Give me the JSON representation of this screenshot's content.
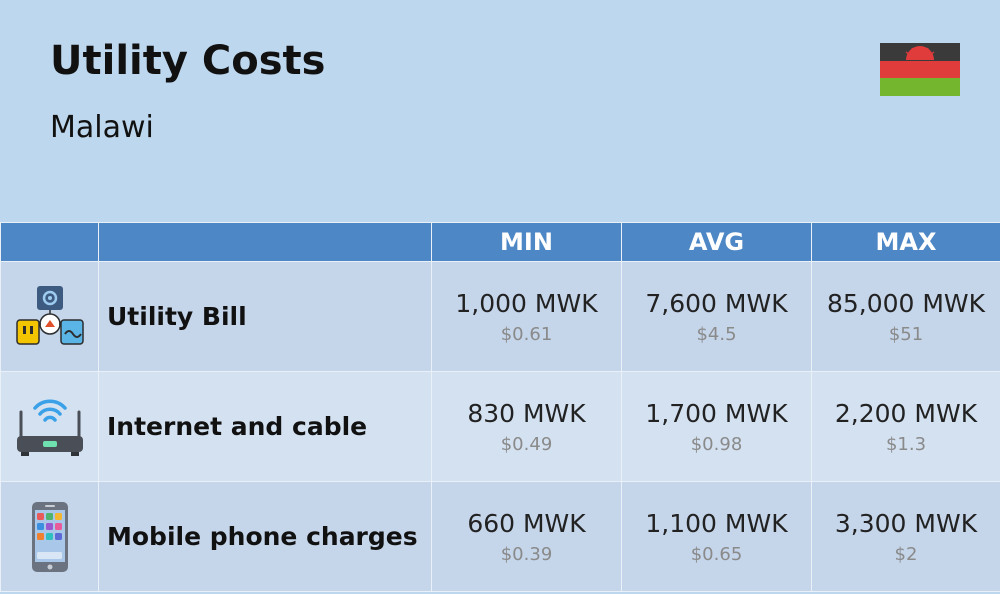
{
  "header": {
    "title": "Utility Costs",
    "subtitle": "Malawi",
    "flag": {
      "country": "Malawi",
      "colors": [
        "#000000",
        "#ce1126",
        "#339e35"
      ],
      "sun_color": "#ce1126"
    }
  },
  "table": {
    "columns": [
      "",
      "",
      "MIN",
      "AVG",
      "MAX"
    ],
    "header_color": "#4e87c5",
    "rows": [
      {
        "icon": "utility-bill-icon",
        "label": "Utility Bill",
        "min": {
          "local": "1,000 MWK",
          "usd": "$0.61"
        },
        "avg": {
          "local": "7,600 MWK",
          "usd": "$4.5"
        },
        "max": {
          "local": "85,000 MWK",
          "usd": "$51"
        }
      },
      {
        "icon": "router-icon",
        "label": "Internet and cable",
        "min": {
          "local": "830 MWK",
          "usd": "$0.49"
        },
        "avg": {
          "local": "1,700 MWK",
          "usd": "$0.98"
        },
        "max": {
          "local": "2,200 MWK",
          "usd": "$1.3"
        }
      },
      {
        "icon": "mobile-phone-icon",
        "label": "Mobile phone charges",
        "min": {
          "local": "660 MWK",
          "usd": "$0.39"
        },
        "avg": {
          "local": "1,100 MWK",
          "usd": "$0.65"
        },
        "max": {
          "local": "3,300 MWK",
          "usd": "$2"
        }
      }
    ]
  }
}
